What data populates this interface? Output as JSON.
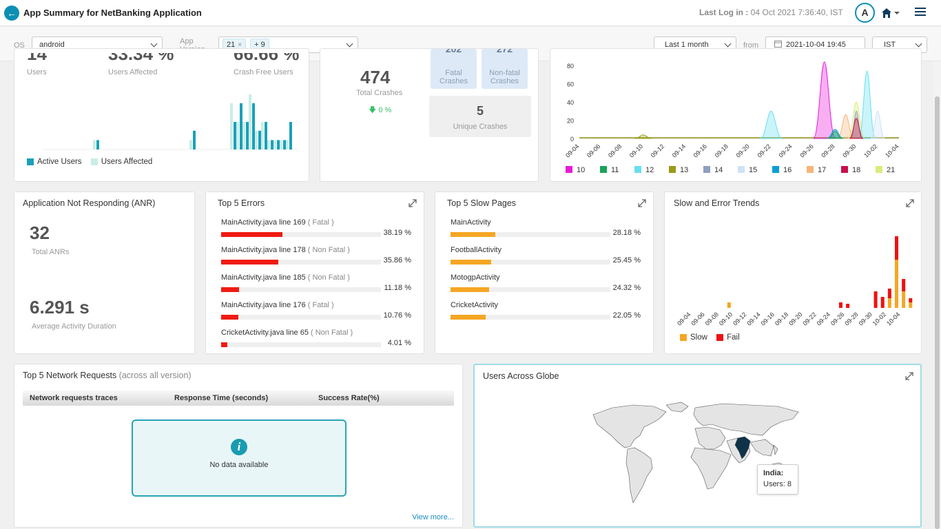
{
  "header": {
    "title": "App Summary for NetBanking Application",
    "last_log_label": "Last Log in :",
    "last_log_value": "04 Oct 2021 7:36:40, IST",
    "avatar_letter": "A"
  },
  "filters": {
    "os_label": "OS",
    "os_value": "android",
    "version_label_1": "App",
    "version_label_2": "Version",
    "version_chip": "21",
    "version_chip_more": "+ 9",
    "range_value": "Last 1 month",
    "from_label": "from",
    "from_value": "2021-10-04 19:45",
    "tz_value": "IST"
  },
  "users_card": {
    "users_label": "Users",
    "users_affected_label": "Users Affected",
    "crash_free_label": "Crash Free Users",
    "legend_active": "Active Users",
    "legend_affected": "Users Affected",
    "colors": {
      "active": "#1aa0b8",
      "affected": "#c9ede8"
    }
  },
  "crash_card": {
    "total_crashes": "474",
    "total_crashes_label": "Total Crashes",
    "change": "0 %",
    "fatal_label_1": "Fatal",
    "fatal_label_2": "Crashes",
    "nonfatal_label_1": "Non-fatal",
    "nonfatal_label_2": "Crashes",
    "unique_value": "5",
    "unique_label": "Unique Crashes"
  },
  "version_trend": {
    "y_ticks": [
      "80",
      "60",
      "40",
      "20",
      "0"
    ],
    "x_ticks": [
      "09-04",
      "09-06",
      "09-08",
      "09-10",
      "09-12",
      "09-14",
      "09-16",
      "09-18",
      "09-20",
      "09-22",
      "09-24",
      "09-26",
      "09-28",
      "09-30",
      "10-02",
      "10-04"
    ],
    "legend": [
      {
        "name": "10",
        "color": "#e81ad9"
      },
      {
        "name": "11",
        "color": "#1aa35a"
      },
      {
        "name": "12",
        "color": "#66e0f0"
      },
      {
        "name": "13",
        "color": "#9a9a1a"
      },
      {
        "name": "14",
        "color": "#8e9fbf"
      },
      {
        "name": "15",
        "color": "#cfe3f7"
      },
      {
        "name": "16",
        "color": "#0a9ed8"
      },
      {
        "name": "17",
        "color": "#f7b479"
      },
      {
        "name": "18",
        "color": "#c8104b"
      },
      {
        "name": "21",
        "color": "#d9ec7b"
      }
    ]
  },
  "anr": {
    "title": "Application Not Responding (ANR)",
    "total_value": "32",
    "total_label": "Total ANRs",
    "duration_value": "6.291 s",
    "duration_label": "Average Activity Duration"
  },
  "top_errors": {
    "title": "Top 5 Errors",
    "items": [
      {
        "label": "MainActivity.java line 169",
        "tag": "( Fatal )",
        "pct": "38.19 %",
        "value": 38.19
      },
      {
        "label": "MainActivity.java line 178",
        "tag": "( Non Fatal )",
        "pct": "35.86 %",
        "value": 35.86
      },
      {
        "label": "MainActivity.java line 185",
        "tag": "( Non Fatal )",
        "pct": "11.18 %",
        "value": 11.18
      },
      {
        "label": "MainActivity.java line 176",
        "tag": "( Fatal )",
        "pct": "10.76 %",
        "value": 10.76
      },
      {
        "label": "CricketActivity.java line 65",
        "tag": "( Non Fatal )",
        "pct": "4.01 %",
        "value": 4.01
      }
    ]
  },
  "slow_pages": {
    "title": "Top 5 Slow Pages",
    "items": [
      {
        "label": "MainActivity",
        "pct": "28.18 %",
        "value": 28.18
      },
      {
        "label": "FootballActivity",
        "pct": "25.45 %",
        "value": 25.45
      },
      {
        "label": "MotogpActivity",
        "pct": "24.32 %",
        "value": 24.32
      },
      {
        "label": "CricketActivity",
        "pct": "22.05 %",
        "value": 22.05
      }
    ]
  },
  "slow_error": {
    "title": "Slow and Error Trends",
    "x_ticks": [
      "09-04",
      "09-06",
      "09-08",
      "09-10",
      "09-12",
      "09-14",
      "09-16",
      "09-18",
      "09-20",
      "09-22",
      "09-24",
      "09-26",
      "09-28",
      "09-30",
      "10-02",
      "10-04"
    ],
    "legend_slow": "Slow",
    "legend_fail": "Fail",
    "colors": {
      "slow": "#f5a623",
      "fail": "#ee1111"
    }
  },
  "network": {
    "title": "Top 5 Network Requests",
    "title_suffix": "(across all version)",
    "col1": "Network requests traces",
    "col2": "Response Time (seconds)",
    "col3": "Success Rate(%)",
    "no_data": "No data available",
    "view_more": "View more..."
  },
  "globe": {
    "title": "Users Across Globe",
    "tooltip_country": "India:",
    "tooltip_users": "Users: 8"
  }
}
